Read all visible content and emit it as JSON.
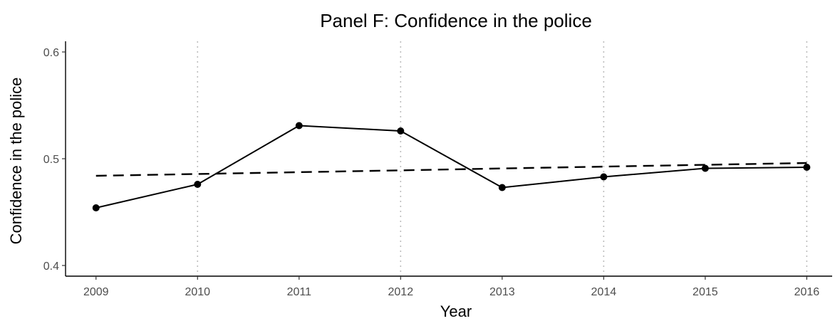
{
  "chart_data": {
    "type": "line",
    "title": "Panel F: Confidence in the police",
    "xlabel": "Year",
    "ylabel": "Confidence in the police",
    "categories": [
      "2009",
      "2010",
      "2011",
      "2012",
      "2013",
      "2014",
      "2015",
      "2016"
    ],
    "x": [
      2009,
      2010,
      2011,
      2012,
      2013,
      2014,
      2015,
      2016
    ],
    "yticks": [
      "0.4",
      "0.5",
      "0.6"
    ],
    "ylim": [
      0.39,
      0.61
    ],
    "xlim": [
      2008.7,
      2016.25
    ],
    "vertical_reference_lines": [
      2010,
      2012,
      2014,
      2016
    ],
    "grid": false,
    "series": [
      {
        "style": "solid-with-points",
        "color": "#000000",
        "values": [
          0.454,
          0.476,
          0.531,
          0.526,
          0.473,
          0.483,
          0.491,
          0.492
        ]
      },
      {
        "style": "dashed",
        "color": "#000000",
        "values": [
          0.484,
          0.4857,
          0.4874,
          0.4891,
          0.4909,
          0.4926,
          0.4943,
          0.496
        ]
      }
    ]
  }
}
